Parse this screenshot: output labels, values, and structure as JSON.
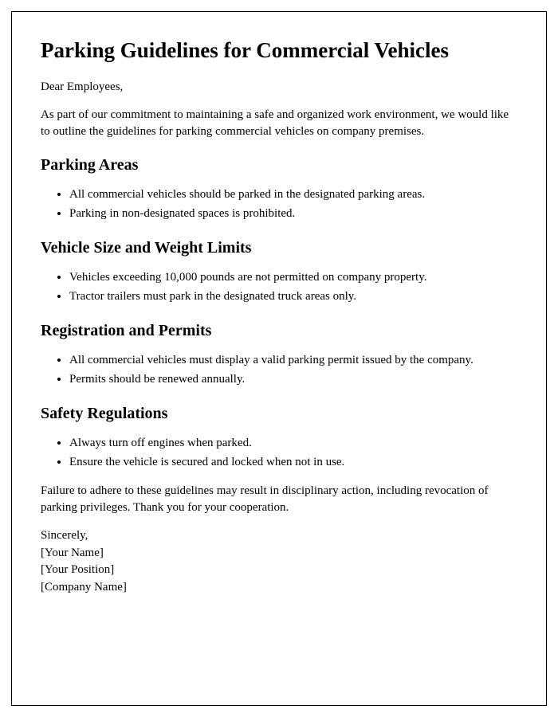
{
  "title": "Parking Guidelines for Commercial Vehicles",
  "salutation": "Dear Employees,",
  "intro": "As part of our commitment to maintaining a safe and organized work environment, we would like to outline the guidelines for parking commercial vehicles on company premises.",
  "sections": [
    {
      "heading": "Parking Areas",
      "items": [
        "All commercial vehicles should be parked in the designated parking areas.",
        "Parking in non-designated spaces is prohibited."
      ]
    },
    {
      "heading": "Vehicle Size and Weight Limits",
      "items": [
        "Vehicles exceeding 10,000 pounds are not permitted on company property.",
        "Tractor trailers must park in the designated truck areas only."
      ]
    },
    {
      "heading": "Registration and Permits",
      "items": [
        "All commercial vehicles must display a valid parking permit issued by the company.",
        "Permits should be renewed annually."
      ]
    },
    {
      "heading": "Safety Regulations",
      "items": [
        "Always turn off engines when parked.",
        "Ensure the vehicle is secured and locked when not in use."
      ]
    }
  ],
  "closing": "Failure to adhere to these guidelines may result in disciplinary action, including revocation of parking privileges. Thank you for your cooperation.",
  "signature": {
    "valediction": "Sincerely,",
    "name": "[Your Name]",
    "position": "[Your Position]",
    "company": "[Company Name]"
  },
  "styles": {
    "background_color": "#ffffff",
    "text_color": "#000000",
    "border_color": "#000000",
    "font_family": "Times New Roman",
    "title_fontsize": 27,
    "heading_fontsize": 20,
    "body_fontsize": 15
  }
}
